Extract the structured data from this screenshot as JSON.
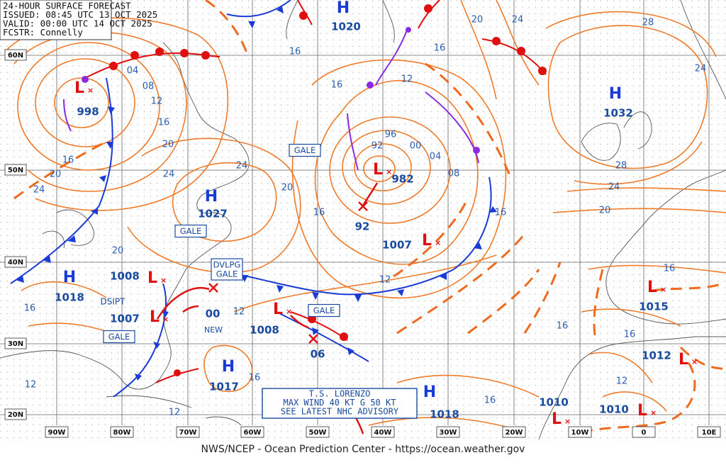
{
  "header": {
    "lines": [
      "24-HOUR SURFACE FORECAST",
      "ISSUED: 08:45 UTC 13 OCT 2025",
      "VALID:  00:00 UTC 14 OCT 2025",
      "FCSTR:  Connelly"
    ]
  },
  "lat_labels": [
    "60N",
    "50N",
    "40N",
    "30N",
    "20N"
  ],
  "lon_labels": [
    "90W",
    "80W",
    "70W",
    "60W",
    "50W",
    "40W",
    "30W",
    "20W",
    "10W",
    "0",
    "10E"
  ],
  "pressure_centers": [
    {
      "type": "H",
      "value": "1020"
    },
    {
      "type": "L",
      "value": "998"
    },
    {
      "type": "L",
      "value": "982"
    },
    {
      "type": "H",
      "value": "1027"
    },
    {
      "type": "H",
      "value": "1032"
    },
    {
      "type": "L",
      "value": "1007"
    },
    {
      "type": "L",
      "value": "1008"
    },
    {
      "type": "L",
      "value": "1007"
    },
    {
      "type": "H",
      "value": "1018"
    },
    {
      "type": "L",
      "value": "1008"
    },
    {
      "type": "H",
      "value": "1017"
    },
    {
      "type": "H",
      "value": "1018"
    },
    {
      "type": "L",
      "value": "1015"
    },
    {
      "type": "L",
      "value": "1012"
    },
    {
      "type": "L",
      "value": "1010"
    },
    {
      "type": "L",
      "value": "1010"
    }
  ],
  "forecast_points": [
    "00",
    "NEW",
    "06",
    "92",
    "DSIPT"
  ],
  "isobar_labels": [
    "16",
    "16",
    "20",
    "24",
    "28",
    "24",
    "04",
    "08",
    "12",
    "16",
    "20",
    "24",
    "24",
    "20",
    "16",
    "12",
    "16",
    "96",
    "92",
    "00",
    "04",
    "08",
    "16",
    "28",
    "24",
    "20",
    "16",
    "20",
    "24",
    "20",
    "16",
    "12",
    "12",
    "16",
    "16",
    "16",
    "12",
    "16",
    "16",
    "12",
    "12"
  ],
  "warning_boxes": [
    [
      "GALE"
    ],
    [
      "GALE"
    ],
    [
      "DVLPG",
      "GALE"
    ],
    [
      "GALE"
    ],
    [
      "GALE"
    ]
  ],
  "advisory": [
    "T.S. LORENZO",
    "MAX WIND 40 KT G 50 KT",
    "SEE LATEST NHC ADVISORY"
  ],
  "footer": "NWS/NCEP - Ocean Prediction Center - https://ocean.weather.gov"
}
